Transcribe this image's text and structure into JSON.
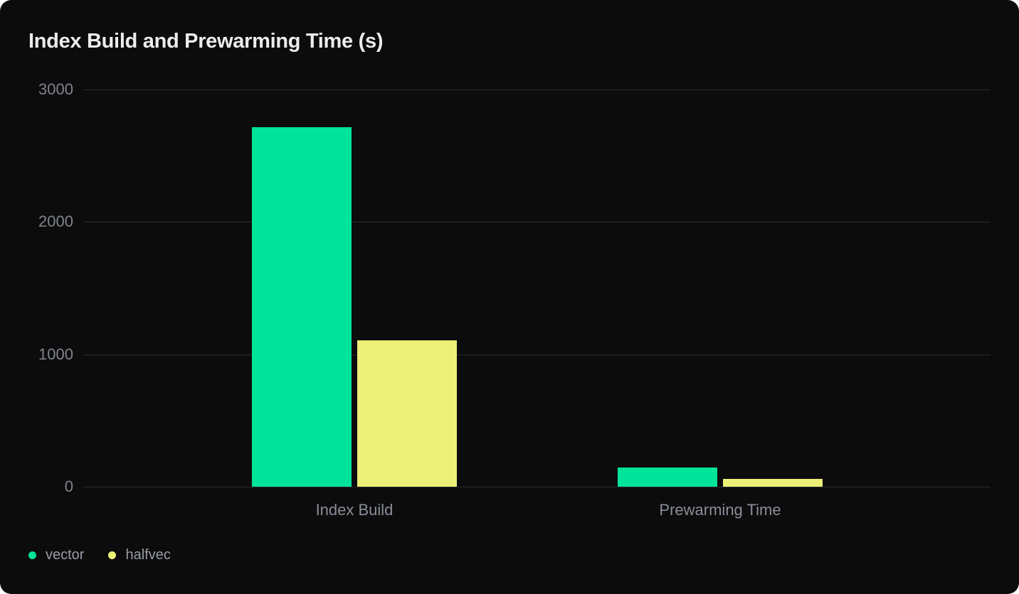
{
  "chart_data": {
    "type": "bar",
    "title": "Index Build and Prewarming Time (s)",
    "categories": [
      "Index Build",
      "Prewarming Time"
    ],
    "series": [
      {
        "name": "vector",
        "color": "#00e49a",
        "values": [
          2715,
          145
        ]
      },
      {
        "name": "halfvec",
        "color": "#edf076",
        "values": [
          1105,
          60
        ]
      }
    ],
    "ylabel": "",
    "xlabel": "",
    "ylim": [
      0,
      3000
    ],
    "yticks": [
      0,
      1000,
      2000,
      3000
    ],
    "grid": true,
    "legend_position": "bottom-left"
  },
  "colors": {
    "card_background": "#0c0c0d",
    "page_background": "#ffffff",
    "gridline": "#2a2b2e",
    "title_text": "#ebedef",
    "ytick_text": "#7f838c",
    "category_text": "#8a8e97",
    "legend_text": "#999da5",
    "series_vector": "#00e49a",
    "series_halfvec": "#edf076"
  }
}
